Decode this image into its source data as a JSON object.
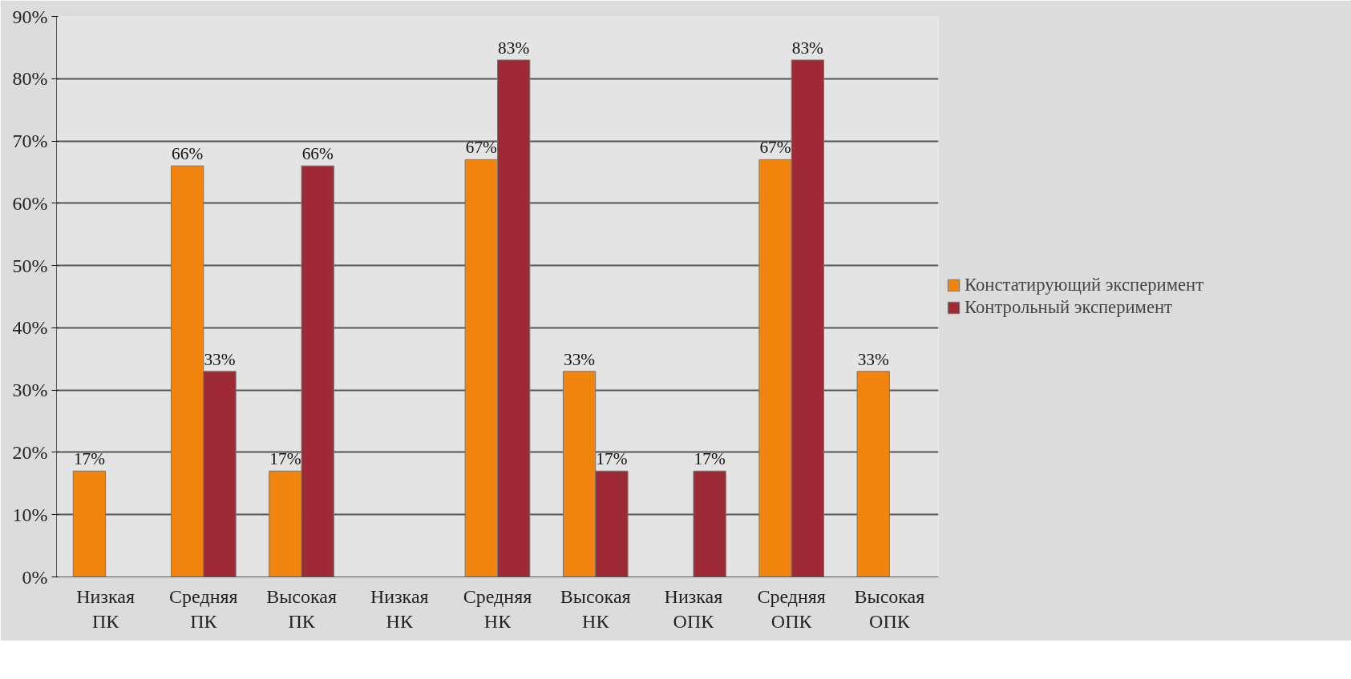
{
  "chart_data": {
    "type": "bar",
    "categories": [
      "Низкая\nПК",
      "Средняя\nПК",
      "Высокая\nПК",
      "Низкая\nНК",
      "Средняя\nНК",
      "Высокая\nНК",
      "Низкая\nОПК",
      "Средняя\nОПК",
      "Высокая\nОПК"
    ],
    "series": [
      {
        "name": "Констатирующий эксперимент",
        "color": "#f0840c",
        "values": [
          17,
          66,
          17,
          null,
          67,
          33,
          null,
          67,
          33
        ],
        "value_labels": [
          "17%",
          "66%",
          "17%",
          null,
          "67%",
          "33%",
          null,
          "67%",
          "33%"
        ]
      },
      {
        "name": "Контрольный эксперимент",
        "color": "#9e2a35",
        "values": [
          null,
          33,
          66,
          null,
          83,
          17,
          17,
          83,
          null
        ],
        "value_labels": [
          null,
          "33%",
          "66%",
          null,
          "83%",
          "17%",
          "17%",
          "83%",
          null
        ]
      }
    ],
    "ylim": [
      0,
      90
    ],
    "yticks": [
      {
        "value": 0,
        "label": "0%"
      },
      {
        "value": 10,
        "label": "10%"
      },
      {
        "value": 20,
        "label": "20%"
      },
      {
        "value": 30,
        "label": "30%"
      },
      {
        "value": 40,
        "label": "40%"
      },
      {
        "value": 50,
        "label": "50%"
      },
      {
        "value": 60,
        "label": "60%"
      },
      {
        "value": 70,
        "label": "70%"
      },
      {
        "value": 80,
        "label": "80%"
      },
      {
        "value": 90,
        "label": "90%"
      }
    ],
    "grid": "y",
    "legend": "right"
  }
}
